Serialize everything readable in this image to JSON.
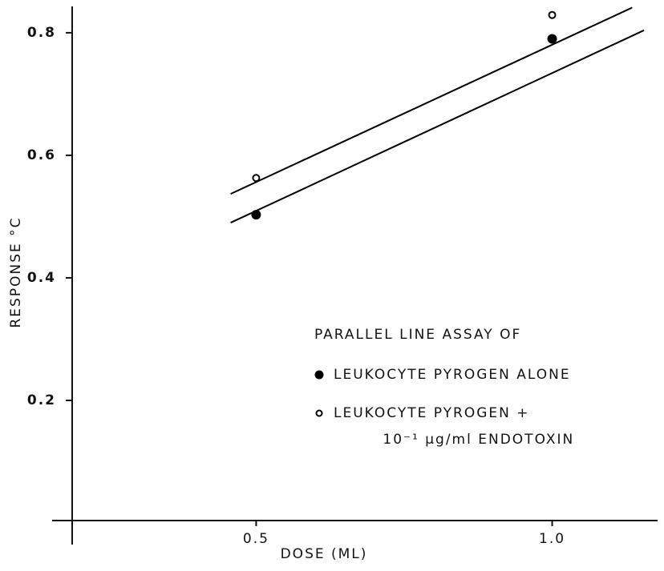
{
  "chart_data": {
    "type": "scatter",
    "xlabel": "DOSE (ML)",
    "ylabel": "RESPONSE °C",
    "legend_title": "PARALLEL LINE ASSAY OF",
    "xscale": "log",
    "xlim": [
      0.325,
      1.28
    ],
    "ylim": [
      0,
      0.843
    ],
    "xticks": [
      0.5,
      {
        "value": 1,
        "label": "1.0"
      }
    ],
    "yticks": [
      0.2,
      0.4,
      0.6,
      0.8
    ],
    "series": [
      {
        "name": "LEUKOCYTE PYROGEN ALONE",
        "color": "#000000",
        "marker": "filled",
        "x": [
          0.5,
          1.0
        ],
        "values": [
          0.503,
          0.79
        ],
        "fit": {
          "x": [
            0.471,
            1.24
          ],
          "values": [
            0.49,
            0.804
          ]
        }
      },
      {
        "name": "LEUKOCYTE PYROGEN + 10⁻¹ µg/ml ENDOTOXIN",
        "color": "#000000",
        "marker": "open",
        "x": [
          0.5,
          1.0
        ],
        "values": [
          0.563,
          0.829
        ],
        "fit": {
          "x": [
            0.471,
            1.206
          ],
          "values": [
            0.537,
            0.841
          ]
        }
      }
    ]
  }
}
